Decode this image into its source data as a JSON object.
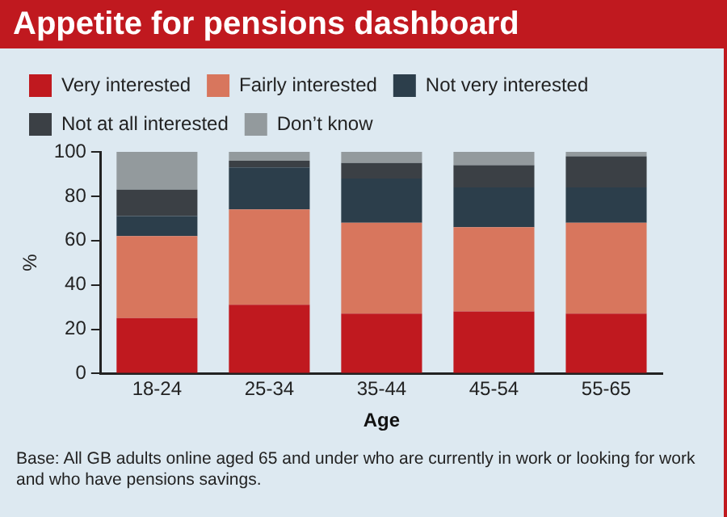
{
  "chart_data": {
    "type": "bar",
    "title": "Appetite for pensions dashboard",
    "xlabel": "Age",
    "ylabel": "%",
    "categories": [
      "18-24",
      "25-34",
      "35-44",
      "45-54",
      "55-65"
    ],
    "stacked": true,
    "series": [
      {
        "name": "Very interested",
        "color": "#c0191f",
        "values": [
          25,
          31,
          27,
          28,
          27
        ]
      },
      {
        "name": "Fairly interested",
        "color": "#d8765d",
        "values": [
          37,
          43,
          41,
          38,
          41
        ]
      },
      {
        "name": "Not very interested",
        "color": "#2c3e4b",
        "values": [
          9,
          19,
          20,
          18,
          16
        ]
      },
      {
        "name": "Not at all interested",
        "color": "#3b4045",
        "values": [
          12,
          3,
          7,
          10,
          14
        ]
      },
      {
        "name": "Don’t know",
        "color": "#939a9d",
        "values": [
          17,
          4,
          5,
          6,
          2
        ]
      }
    ],
    "ylim": [
      0,
      100
    ],
    "yticks": [
      0,
      20,
      40,
      60,
      80,
      100
    ],
    "grid": false,
    "legend": "top left",
    "annotations": [
      "Base: All GB adults online aged 65 and under who are currently in work or looking for work and who have pensions savings."
    ]
  }
}
